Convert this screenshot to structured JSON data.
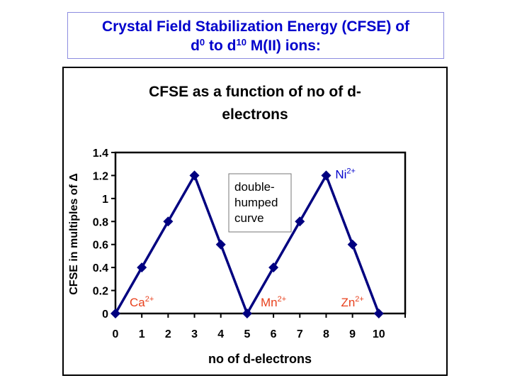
{
  "slide_title": {
    "line1": "Crystal Field Stabilization Energy (CFSE) of",
    "d": "d",
    "sup0": "0",
    "to": " to d",
    "sup10": "10",
    "rest": " M(II) ions:"
  },
  "chart_data": {
    "type": "line",
    "title_lines": [
      "CFSE as a function of no of d-",
      "electrons"
    ],
    "xlabel": "no of d-electrons",
    "ylabel": "CFSE in multiples of Δ",
    "x": [
      0,
      1,
      2,
      3,
      4,
      5,
      6,
      7,
      8,
      9,
      10
    ],
    "values": [
      0,
      0.4,
      0.8,
      1.2,
      0.6,
      0,
      0.4,
      0.8,
      1.2,
      0.6,
      0
    ],
    "xlim": [
      0,
      11
    ],
    "ylim": [
      0,
      1.4
    ],
    "xticks": [
      "0",
      "1",
      "2",
      "3",
      "4",
      "5",
      "6",
      "7",
      "8",
      "9",
      "10"
    ],
    "yticks": [
      "0",
      "0.2",
      "0.4",
      "0.6",
      "0.8",
      "1",
      "1.2",
      "1.4"
    ],
    "grid": false,
    "marker": "diamond",
    "series_color": "#000080",
    "annotations": [
      {
        "base": "Ca",
        "sup": "2+",
        "x": 1,
        "y": 0.05,
        "color": "#e8401c"
      },
      {
        "base": "Mn",
        "sup": "2+",
        "x": 6,
        "y": 0.05,
        "color": "#e8401c"
      },
      {
        "base": "Zn",
        "sup": "2+",
        "x": 9,
        "y": 0.05,
        "color": "#e8401c"
      },
      {
        "base": "Ni",
        "sup": "2+",
        "x": 9,
        "y": 1.2,
        "color": "#0000cc"
      }
    ],
    "textbox": [
      "double-",
      "humped",
      "curve"
    ]
  }
}
